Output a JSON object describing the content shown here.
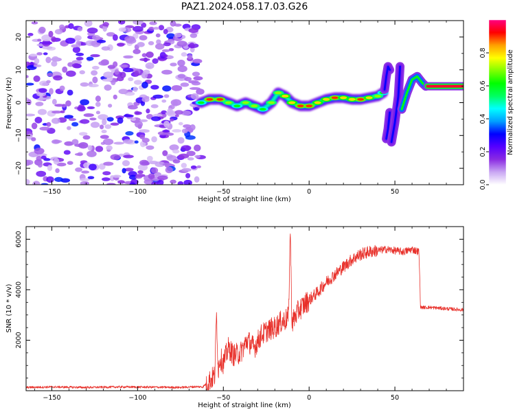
{
  "figure": {
    "title": "PAZ1.2024.058.17.03.G26"
  },
  "chart_data": [
    {
      "type": "heatmap",
      "id": "spectrogram",
      "xlabel": "Height of straight line (km)",
      "ylabel": "Frequency (Hz)",
      "xlim": [
        -165,
        90
      ],
      "ylim": [
        -25,
        25
      ],
      "xticks": [
        -150,
        -100,
        -50,
        0,
        50
      ],
      "yticks": [
        -20,
        -10,
        0,
        10,
        20
      ],
      "noise_region_x": [
        -165,
        -63
      ],
      "colorbar": {
        "label": "Normalized spectral amplitude",
        "range": [
          0,
          1
        ],
        "ticks": [
          0.0,
          0.2,
          0.4,
          0.6,
          0.8
        ],
        "colormap": [
          "#ffffff",
          "#c9a6f3",
          "#8a2be2",
          "#5500ff",
          "#0000ff",
          "#00a0ff",
          "#00ffff",
          "#00ff60",
          "#00ff00",
          "#80ff00",
          "#ffff00",
          "#ffa000",
          "#ff0000",
          "#ff0080"
        ]
      },
      "ridge": {
        "x": [
          -63,
          -58,
          -52,
          -47,
          -42,
          -37,
          -32,
          -27,
          -22,
          -18,
          -14,
          -10,
          -5,
          0,
          5,
          10,
          15,
          20,
          25,
          30,
          35,
          40,
          43
        ],
        "freq": [
          0,
          1,
          1,
          0,
          -1,
          0,
          -1,
          -2,
          0,
          3,
          2,
          0,
          -1,
          -1,
          0,
          1,
          1.5,
          1.5,
          1,
          1,
          1.5,
          2,
          3
        ],
        "peak_amp": [
          0.6,
          0.9,
          0.9,
          0.7,
          0.6,
          0.7,
          0.7,
          0.6,
          0.7,
          0.7,
          0.8,
          0.8,
          0.9,
          0.9,
          0.8,
          0.8,
          0.9,
          0.8,
          0.8,
          0.9,
          0.8,
          0.7,
          0.6
        ]
      },
      "branches": [
        {
          "x": [
            44,
            45,
            46,
            47
          ],
          "freq": [
            4,
            8,
            11,
            10
          ],
          "amp": 0.3
        },
        {
          "x": [
            45,
            46,
            47
          ],
          "freq": [
            -11,
            -8,
            -3
          ],
          "amp": 0.3
        },
        {
          "x": [
            48,
            50,
            52,
            53
          ],
          "freq": [
            -12,
            -6,
            2,
            11
          ],
          "amp": 0.3
        },
        {
          "x": [
            54,
            57,
            60,
            63,
            66,
            68
          ],
          "freq": [
            -2,
            3,
            7,
            8,
            6,
            5
          ],
          "amp": 0.6
        },
        {
          "x": [
            69,
            90
          ],
          "freq": [
            5,
            5
          ],
          "amp": 0.95
        }
      ]
    },
    {
      "type": "line",
      "id": "snr",
      "xlabel": "Height of straight line (km)",
      "ylabel": "SNR (10 * v/v)",
      "xlim": [
        -165,
        90
      ],
      "ylim": [
        0,
        6500
      ],
      "xticks": [
        -150,
        -100,
        -50,
        0,
        50
      ],
      "yticks": [
        2000,
        4000,
        6000
      ],
      "color": "#e8302a",
      "series": [
        {
          "x": [
            -165,
            -150,
            -130,
            -110,
            -90,
            -75,
            -66,
            -62,
            -58,
            -55,
            -54,
            -53,
            -52,
            -50,
            -47,
            -44,
            -40,
            -36,
            -32,
            -28,
            -24,
            -20,
            -17,
            -14,
            -12,
            -11,
            -10,
            -6,
            0,
            5,
            10,
            15,
            20,
            25,
            30,
            35,
            40,
            45,
            50,
            55,
            60,
            64,
            65,
            66,
            70,
            80,
            90
          ],
          "y": [
            130,
            150,
            130,
            150,
            140,
            130,
            160,
            150,
            400,
            600,
            3100,
            800,
            1300,
            1100,
            1700,
            1400,
            1500,
            2000,
            1700,
            2200,
            2400,
            2500,
            2700,
            2800,
            2900,
            6400,
            2700,
            3200,
            3600,
            3900,
            4300,
            4600,
            4900,
            5200,
            5400,
            5500,
            5550,
            5600,
            5550,
            5500,
            5600,
            5500,
            3300,
            3300,
            3300,
            3250,
            3200
          ]
        }
      ]
    }
  ]
}
